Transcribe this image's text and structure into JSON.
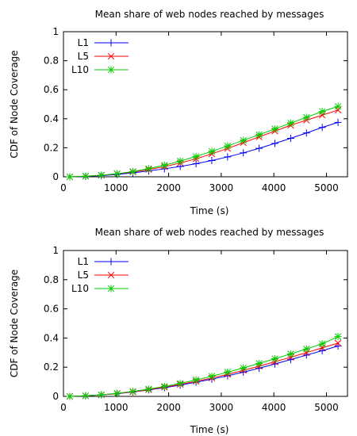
{
  "chart_data": [
    {
      "type": "line",
      "title": "Mean share of web nodes reached by messages",
      "xlabel": "Time (s)",
      "ylabel": "CDF of Node Coverage",
      "xlim": [
        0,
        5400
      ],
      "ylim": [
        0,
        1
      ],
      "xticks": [
        "0",
        "1000",
        "2000",
        "3000",
        "4000",
        "5000"
      ],
      "yticks": [
        "0",
        "0.2",
        "0.4",
        "0.6",
        "0.8",
        "1"
      ],
      "legend_position": "top-left",
      "grid": false,
      "x": [
        120,
        420,
        720,
        1020,
        1320,
        1620,
        1920,
        2220,
        2520,
        2820,
        3120,
        3420,
        3720,
        4020,
        4320,
        4620,
        4920,
        5220
      ],
      "series": [
        {
          "name": "L1",
          "color": "#0000ff",
          "marker": "plus",
          "values": [
            0.0,
            0.003,
            0.008,
            0.016,
            0.027,
            0.04,
            0.055,
            0.071,
            0.09,
            0.112,
            0.137,
            0.165,
            0.196,
            0.23,
            0.265,
            0.302,
            0.34,
            0.375
          ]
        },
        {
          "name": "L5",
          "color": "#ff0000",
          "marker": "x",
          "values": [
            0.0,
            0.004,
            0.01,
            0.02,
            0.033,
            0.05,
            0.07,
            0.095,
            0.124,
            0.158,
            0.195,
            0.235,
            0.275,
            0.315,
            0.355,
            0.39,
            0.425,
            0.46
          ]
        },
        {
          "name": "L10",
          "color": "#00cc00",
          "marker": "star",
          "values": [
            0.0,
            0.004,
            0.011,
            0.021,
            0.036,
            0.056,
            0.08,
            0.108,
            0.14,
            0.175,
            0.212,
            0.251,
            0.29,
            0.33,
            0.37,
            0.41,
            0.45,
            0.485
          ]
        }
      ]
    },
    {
      "type": "line",
      "title": "Mean share of web nodes reached by messages",
      "xlabel": "Time (s)",
      "ylabel": "CDF of Node Coverage",
      "xlim": [
        0,
        5400
      ],
      "ylim": [
        0,
        1
      ],
      "xticks": [
        "0",
        "1000",
        "2000",
        "3000",
        "4000",
        "5000"
      ],
      "yticks": [
        "0",
        "0.2",
        "0.4",
        "0.6",
        "0.8",
        "1"
      ],
      "legend_position": "top-left",
      "grid": false,
      "x": [
        120,
        420,
        720,
        1020,
        1320,
        1620,
        1920,
        2220,
        2520,
        2820,
        3120,
        3420,
        3720,
        4020,
        4320,
        4620,
        4920,
        5220
      ],
      "series": [
        {
          "name": "L1",
          "color": "#0000ff",
          "marker": "plus",
          "values": [
            0.0,
            0.004,
            0.01,
            0.018,
            0.03,
            0.044,
            0.06,
            0.077,
            0.097,
            0.118,
            0.141,
            0.166,
            0.193,
            0.222,
            0.252,
            0.283,
            0.313,
            0.345
          ]
        },
        {
          "name": "L5",
          "color": "#ff0000",
          "marker": "x",
          "values": [
            0.0,
            0.004,
            0.01,
            0.019,
            0.031,
            0.046,
            0.063,
            0.082,
            0.103,
            0.126,
            0.151,
            0.178,
            0.207,
            0.237,
            0.268,
            0.3,
            0.333,
            0.365
          ]
        },
        {
          "name": "L10",
          "color": "#00cc00",
          "marker": "star",
          "values": [
            0.0,
            0.004,
            0.011,
            0.021,
            0.034,
            0.05,
            0.068,
            0.089,
            0.113,
            0.138,
            0.166,
            0.195,
            0.226,
            0.258,
            0.291,
            0.325,
            0.36,
            0.41
          ]
        }
      ]
    }
  ]
}
